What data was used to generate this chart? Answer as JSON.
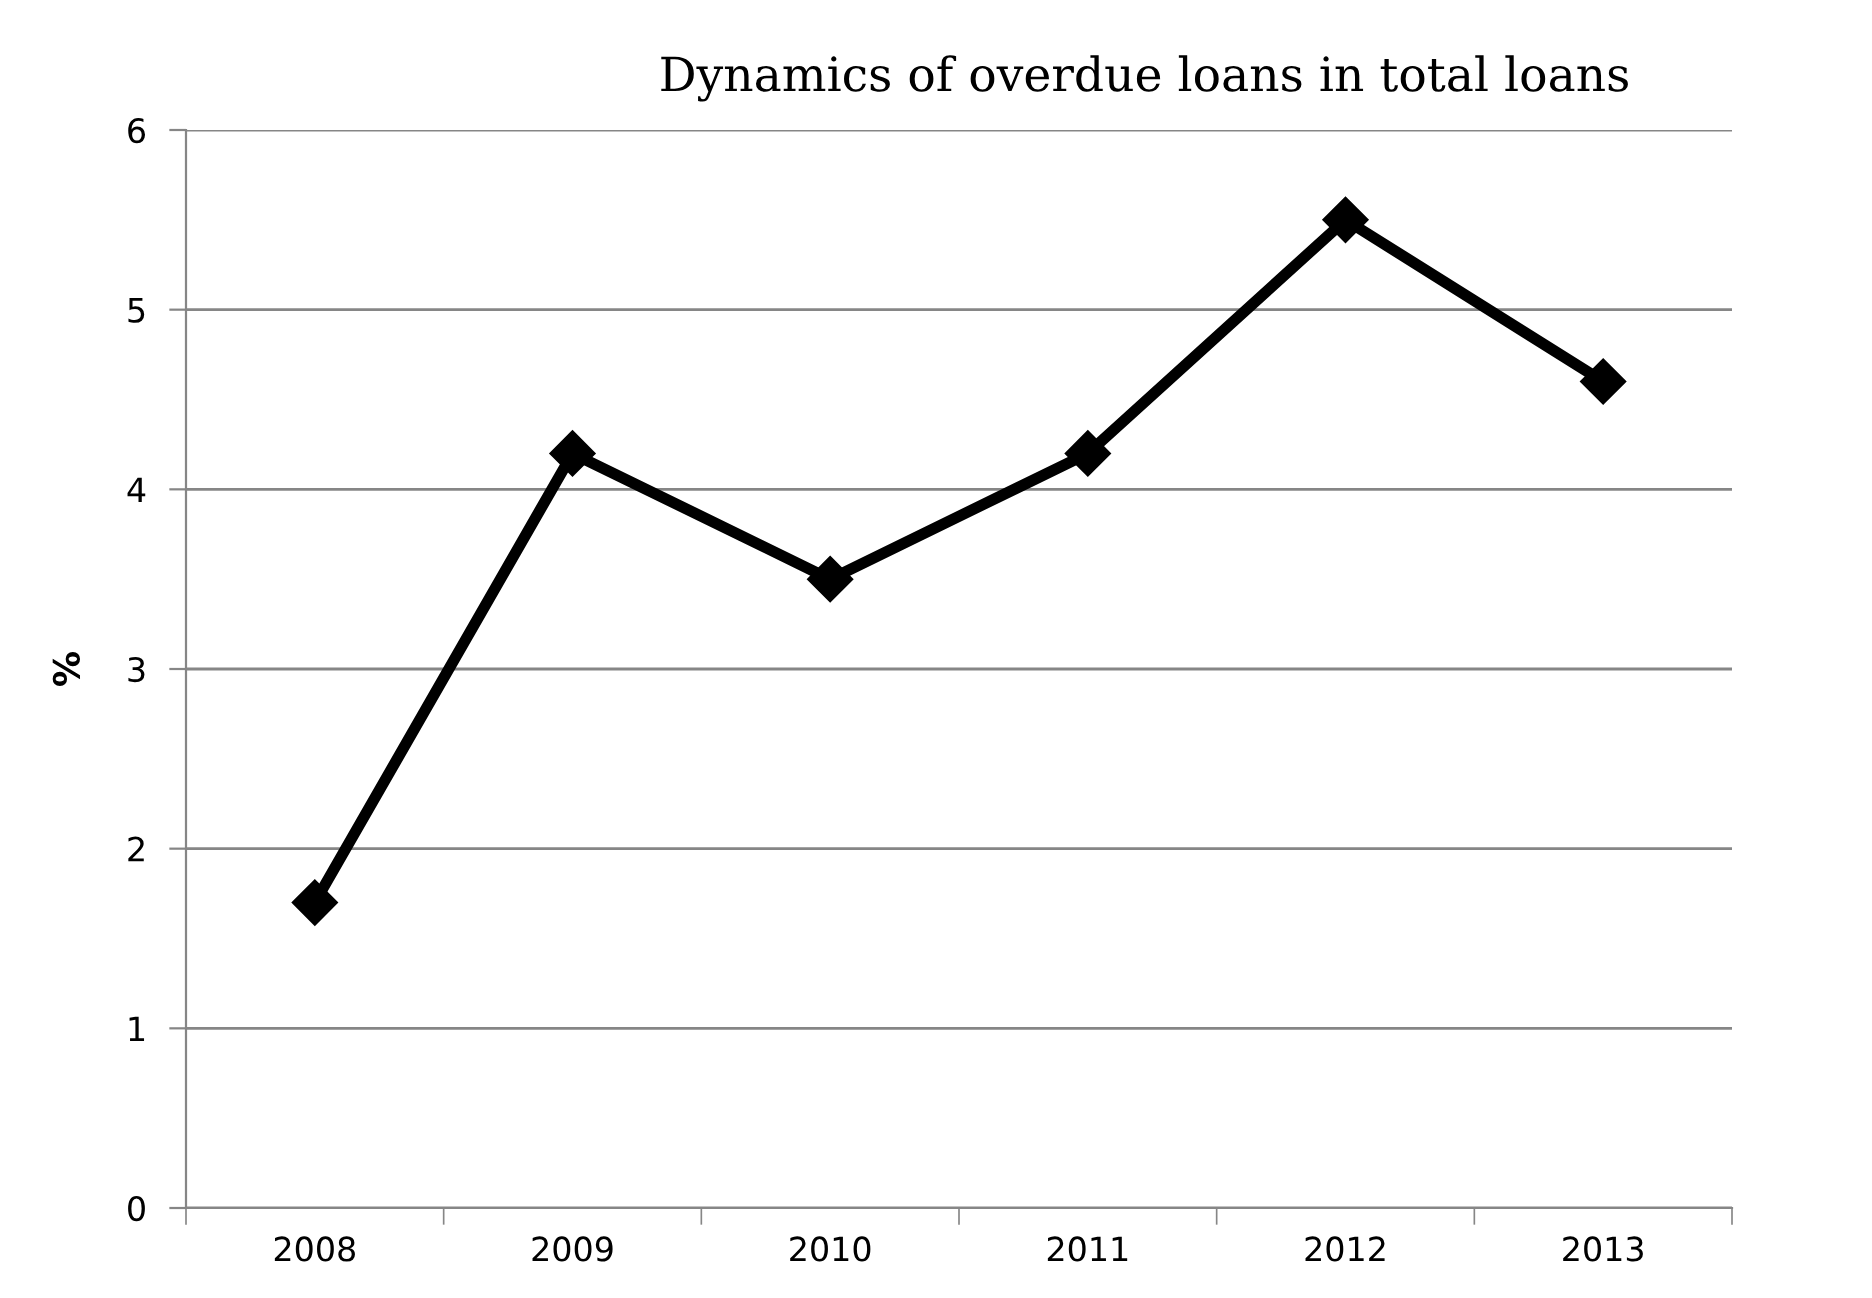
{
  "chart_data": {
    "type": "line",
    "title": "Dynamics of overdue loans in total loans",
    "ylabel": "%",
    "categories": [
      "2008",
      "2009",
      "2010",
      "2011",
      "2012",
      "2013"
    ],
    "series": [
      {
        "color": "#000000",
        "values": [
          1.7,
          4.2,
          3.5,
          4.2,
          5.5,
          4.6
        ]
      }
    ],
    "ylim": [
      0,
      6
    ],
    "yticks": [
      0,
      1,
      2,
      3,
      4,
      5,
      6
    ],
    "grid": "y",
    "marker": "diamond",
    "line_style": "solid",
    "legend": false
  }
}
